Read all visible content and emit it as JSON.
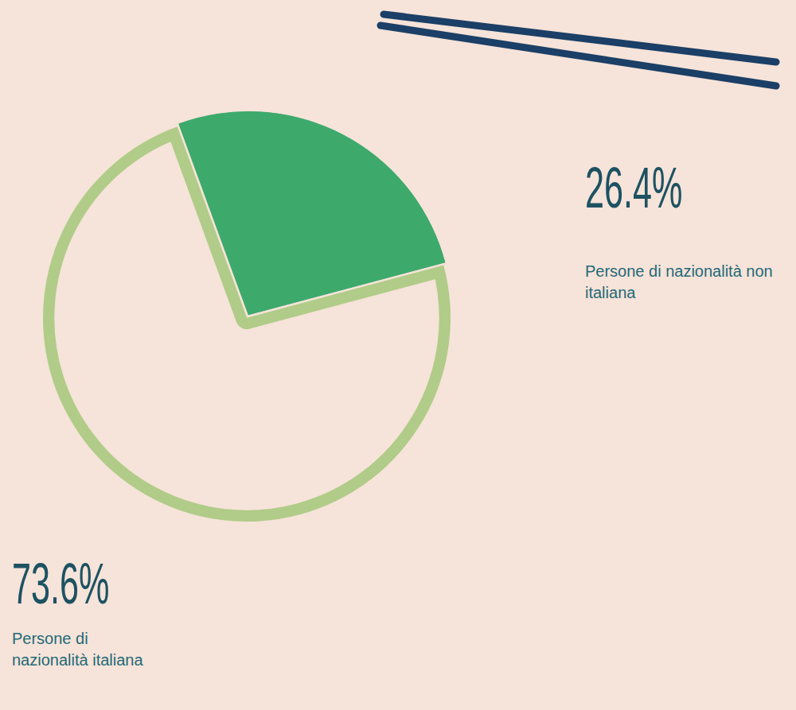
{
  "chart_data": {
    "type": "pie",
    "categories": [
      "Persone di nazionalità non italiana",
      "Persone di nazionalità italiana"
    ],
    "values": [
      26.4,
      73.6
    ],
    "value_labels": [
      "26.4%",
      "73.6%"
    ],
    "colors": [
      "#3daa6c",
      "#f6e3d9"
    ],
    "data_labels": true
  }
}
